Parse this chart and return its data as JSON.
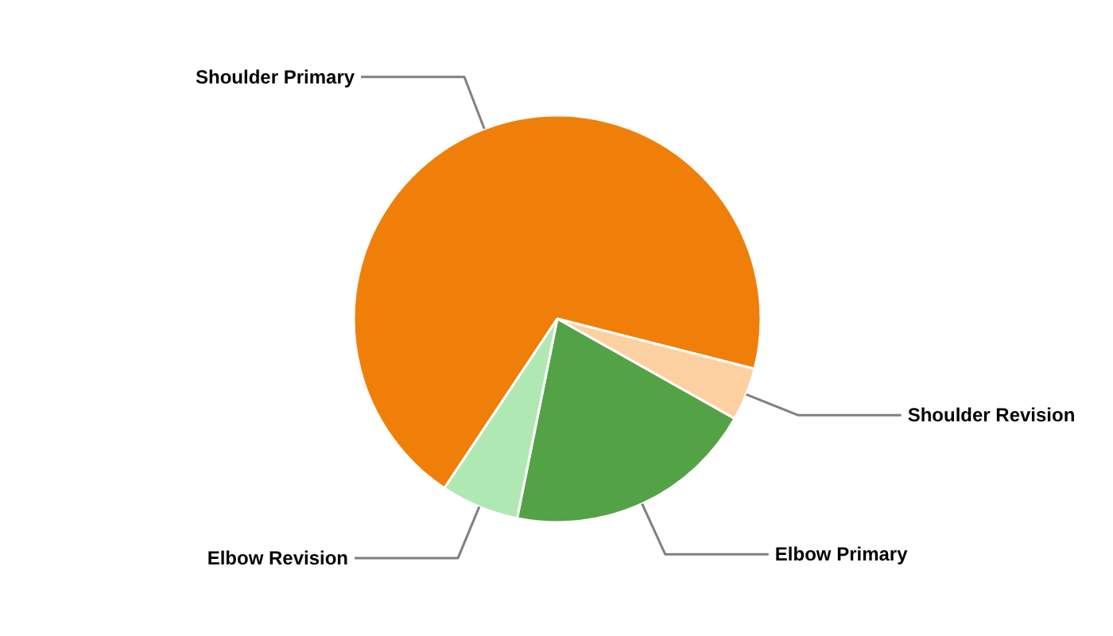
{
  "chart_data": {
    "type": "pie",
    "categories": [
      "Shoulder Primary",
      "Shoulder Revision",
      "Elbow Primary",
      "Elbow Revision"
    ],
    "values": [
      69.6,
      4.2,
      20.0,
      6.2
    ],
    "colors": [
      "#f07f09",
      "#fdd0a2",
      "#54a246",
      "#b0e8b4"
    ],
    "legend": false
  }
}
